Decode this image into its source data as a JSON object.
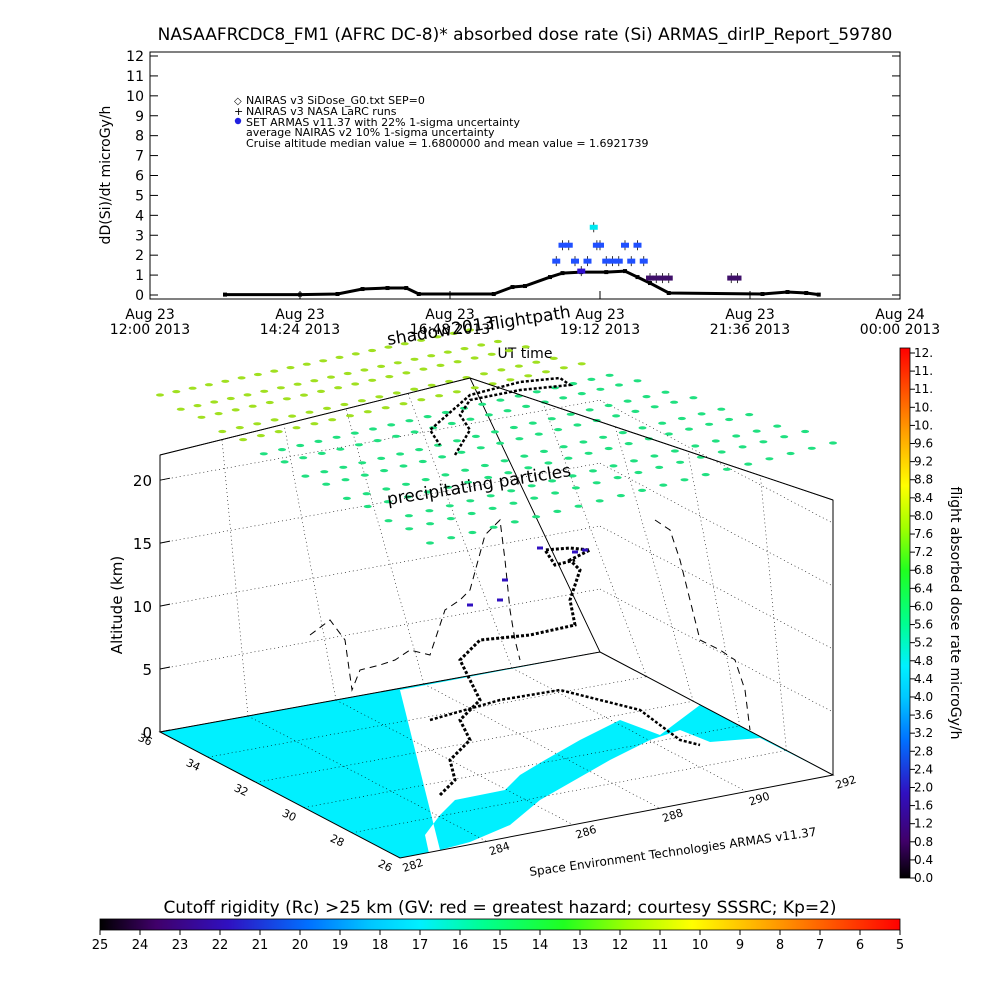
{
  "title": "NASAAFRCDC8_FM1 (AFRC DC-8)* absorbed dose rate (Si) ARMAS_dirIP_Report_59780",
  "chart_data": [
    {
      "type": "line",
      "ylabel": "dD(Si)/dt microGy/h",
      "xlabel": "UT time",
      "ylim": [
        0,
        12
      ],
      "yticks": [
        "0",
        "1",
        "2",
        "3",
        "4",
        "5",
        "6",
        "7",
        "8",
        "9",
        "10",
        "11",
        "12"
      ],
      "xticks": [
        {
          "line1": "Aug 23",
          "line2": "12:00 2013"
        },
        {
          "line1": "Aug 23",
          "line2": "14:24 2013"
        },
        {
          "line1": "Aug 23",
          "line2": "16:48 2013"
        },
        {
          "line1": "Aug 23",
          "line2": "19:12 2013"
        },
        {
          "line1": "Aug 23",
          "line2": "21:36 2013"
        },
        {
          "line1": "Aug 24",
          "line2": "00:00 2013"
        }
      ],
      "xlim_hours": [
        12.0,
        24.0
      ],
      "legend": [
        "NAIRAS v3 SiDose_G0.txt SEP=0",
        "NAIRAS v3 NASA LaRC runs",
        "SET ARMAS v11.37 with 22% 1-sigma uncertainty",
        "average NAIRAS v2 10% 1-sigma uncertainty",
        "Cruise altitude median value = 1.6800000 and mean value = 1.6921739"
      ],
      "series": [
        {
          "name": "NAIRAS v3 SiDose_G0.txt SEP=0",
          "points": [
            [
              13.2,
              0.02
            ],
            [
              14.4,
              0.02
            ],
            [
              15.0,
              0.05
            ],
            [
              15.4,
              0.3
            ],
            [
              15.8,
              0.35
            ],
            [
              16.1,
              0.35
            ],
            [
              16.3,
              0.05
            ],
            [
              17.5,
              0.05
            ],
            [
              17.8,
              0.4
            ],
            [
              18.0,
              0.45
            ],
            [
              18.4,
              0.9
            ],
            [
              18.6,
              1.1
            ],
            [
              18.9,
              1.15
            ],
            [
              19.3,
              1.15
            ],
            [
              19.6,
              1.2
            ],
            [
              19.8,
              0.9
            ],
            [
              20.0,
              0.6
            ],
            [
              20.3,
              0.1
            ],
            [
              21.8,
              0.05
            ],
            [
              22.2,
              0.15
            ],
            [
              22.5,
              0.1
            ],
            [
              22.7,
              0.02
            ]
          ]
        },
        {
          "name": "NAIRAS v3 NASA LaRC runs",
          "points": [
            [
              13.2,
              0.02
            ],
            [
              14.4,
              0.02
            ],
            [
              15.0,
              0.05
            ],
            [
              15.4,
              0.3
            ],
            [
              15.8,
              0.35
            ],
            [
              16.1,
              0.35
            ],
            [
              16.3,
              0.05
            ],
            [
              17.5,
              0.05
            ],
            [
              17.8,
              0.4
            ],
            [
              18.0,
              0.45
            ],
            [
              18.4,
              0.9
            ],
            [
              18.6,
              1.1
            ],
            [
              18.9,
              1.15
            ],
            [
              19.3,
              1.15
            ],
            [
              19.6,
              1.2
            ],
            [
              19.8,
              0.9
            ],
            [
              20.0,
              0.6
            ],
            [
              20.3,
              0.1
            ],
            [
              21.8,
              0.05
            ],
            [
              22.2,
              0.15
            ],
            [
              22.5,
              0.1
            ],
            [
              22.7,
              0.02
            ]
          ]
        },
        {
          "name": "SET ARMAS v11.37 with 22% 1-sigma uncertainty",
          "points": [
            [
              18.5,
              1.7
            ],
            [
              18.6,
              2.5
            ],
            [
              18.7,
              2.5
            ],
            [
              18.8,
              1.7
            ],
            [
              18.9,
              1.2
            ],
            [
              19.0,
              1.7
            ],
            [
              19.1,
              3.4
            ],
            [
              19.15,
              2.5
            ],
            [
              19.2,
              2.5
            ],
            [
              19.3,
              1.7
            ],
            [
              19.4,
              1.7
            ],
            [
              19.5,
              1.7
            ],
            [
              19.6,
              2.5
            ],
            [
              19.7,
              1.7
            ],
            [
              19.8,
              2.5
            ],
            [
              19.9,
              1.7
            ],
            [
              20.0,
              0.85
            ],
            [
              20.1,
              0.85
            ],
            [
              20.2,
              0.85
            ],
            [
              20.3,
              0.85
            ],
            [
              21.3,
              0.85
            ],
            [
              21.4,
              0.85
            ]
          ]
        }
      ]
    },
    {
      "type": "scatter",
      "subtype": "3d-flight-track",
      "zlabel": "Altitude (km)",
      "zticks": [
        "0",
        "5",
        "10",
        "15",
        "20"
      ],
      "zlim": [
        0,
        22
      ],
      "lat_ticks": [
        "26",
        "28",
        "30",
        "32",
        "34",
        "36"
      ],
      "lon_ticks": [
        "282",
        "284",
        "286",
        "288",
        "290",
        "292"
      ],
      "annotations": {
        "shadow": "shadow2013",
        "flightpath": "flightpath",
        "precip": "precipitating particles",
        "credit": "Space Environment Technologies ARMAS v11.37"
      }
    }
  ],
  "colorbar_dose": {
    "label": "flight absorbed dose rate microGy/h",
    "ticks": [
      "12.",
      "11.",
      "11.",
      "10.",
      "10.",
      "9.6",
      "9.2",
      "8.8",
      "8.4",
      "8.0",
      "7.6",
      "7.2",
      "6.8",
      "6.4",
      "6.0",
      "5.6",
      "5.2",
      "4.8",
      "4.4",
      "4.0",
      "3.6",
      "3.2",
      "2.8",
      "2.4",
      "2.0",
      "1.6",
      "1.2",
      "0.8",
      "0.4",
      "0.0"
    ]
  },
  "colorbar_rigidity": {
    "label": "Cutoff rigidity (Rc) >25 km (GV: red = greatest hazard; courtesy SSSRC; Kp=2)",
    "ticks": [
      "25",
      "24",
      "23",
      "22",
      "21",
      "20",
      "19",
      "18",
      "17",
      "16",
      "15",
      "14",
      "13",
      "12",
      "11",
      "10",
      "9",
      "8",
      "7",
      "6",
      "5"
    ]
  },
  "colors": {
    "ocean": "#00f0ff",
    "land": "#ffffff",
    "armas_points": "#2020e0",
    "armas_peak": "#00e8f0",
    "nairas_track": "#000000",
    "precip_green": "#20e080",
    "precip_lime": "#a0e020"
  }
}
